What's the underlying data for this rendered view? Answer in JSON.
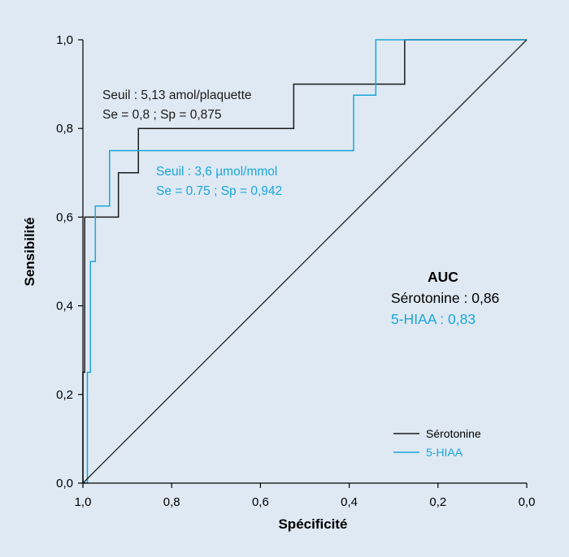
{
  "chart_data": {
    "type": "line",
    "xlabel": "Spécificité",
    "ylabel": "Sensibilité",
    "xlim": [
      1.0,
      0.0
    ],
    "ylim": [
      0.0,
      1.0
    ],
    "x_reversed": true,
    "xticks": [
      "1,0",
      "0,8",
      "0,6",
      "0,4",
      "0,2",
      "0,0"
    ],
    "xtick_values": [
      1.0,
      0.8,
      0.6,
      0.4,
      0.2,
      0.0
    ],
    "yticks": [
      "0,0",
      "0,2",
      "0,4",
      "0,6",
      "0,8",
      "1,0"
    ],
    "ytick_values": [
      0.0,
      0.2,
      0.4,
      0.6,
      0.8,
      1.0
    ],
    "grid": false,
    "legend_position": "bottom-right",
    "series": [
      {
        "name": "Sérotonine",
        "color": "#1a1a1a",
        "points": [
          [
            1.0,
            0.0
          ],
          [
            1.0,
            0.25
          ],
          [
            0.996,
            0.25
          ],
          [
            0.996,
            0.6
          ],
          [
            0.92,
            0.6
          ],
          [
            0.92,
            0.7
          ],
          [
            0.875,
            0.7
          ],
          [
            0.875,
            0.8
          ],
          [
            0.525,
            0.8
          ],
          [
            0.525,
            0.9
          ],
          [
            0.275,
            0.9
          ],
          [
            0.275,
            1.0
          ],
          [
            0.0,
            1.0
          ]
        ]
      },
      {
        "name": "5-HIAA",
        "color": "#1aa6d9",
        "points": [
          [
            1.0,
            0.0
          ],
          [
            0.99,
            0.0
          ],
          [
            0.99,
            0.25
          ],
          [
            0.983,
            0.25
          ],
          [
            0.983,
            0.5
          ],
          [
            0.972,
            0.5
          ],
          [
            0.972,
            0.625
          ],
          [
            0.94,
            0.625
          ],
          [
            0.94,
            0.75
          ],
          [
            0.39,
            0.75
          ],
          [
            0.39,
            0.875
          ],
          [
            0.34,
            0.875
          ],
          [
            0.34,
            1.0
          ],
          [
            0.0,
            1.0
          ]
        ]
      },
      {
        "name": "",
        "color": "#1a1a1a",
        "points": [
          [
            1.0,
            0.0
          ],
          [
            0.0,
            1.0
          ]
        ]
      }
    ],
    "annotations": [
      {
        "line1": "Seuil : 5,13 amol/plaquette",
        "line2": "Se = 0,8 ; Sp = 0,875",
        "color": "#1a1a1a"
      },
      {
        "line1": "Seuil : 3,6 µmol/mmol",
        "line2": "Se = 0.75 ; Sp = 0,942",
        "color": "#1aa6d9"
      }
    ],
    "auc": {
      "title": "AUC",
      "serotonine": "Sérotonine : 0,86",
      "hiaa": "5-HIAA : 0,83"
    },
    "legend": [
      {
        "label": "Sérotonine",
        "color": "#1a1a1a"
      },
      {
        "label": "5-HIAA",
        "color": "#1aa6d9"
      }
    ]
  }
}
